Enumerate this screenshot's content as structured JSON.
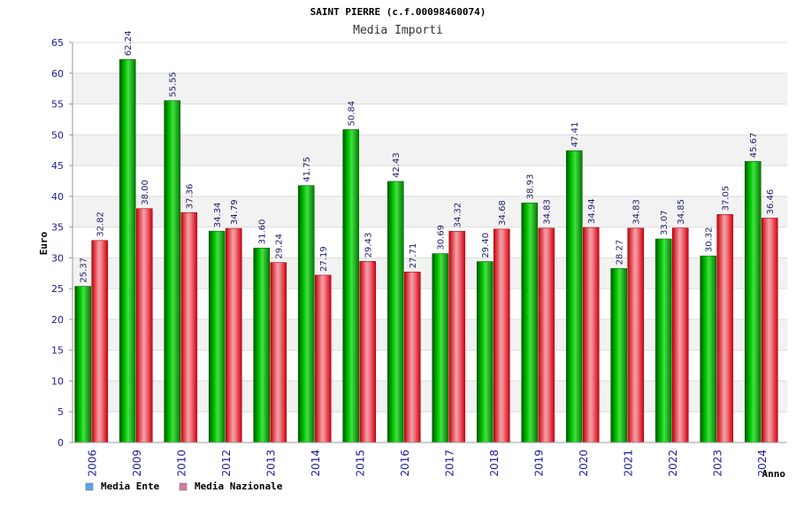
{
  "chart_data": {
    "type": "bar",
    "title": "SAINT PIERRE (c.f.00098460074)",
    "subtitle": "Media Importi",
    "xlabel": "Anno",
    "ylabel": "Euro",
    "ylim": [
      0,
      65
    ],
    "yticks": [
      0,
      5,
      10,
      15,
      20,
      25,
      30,
      35,
      40,
      45,
      50,
      55,
      60,
      65
    ],
    "grid": true,
    "legend_position": "bottom-left",
    "categories": [
      "2006",
      "2009",
      "2010",
      "2012",
      "2013",
      "2014",
      "2015",
      "2016",
      "2017",
      "2018",
      "2019",
      "2020",
      "2021",
      "2022",
      "2023",
      "2024"
    ],
    "series": [
      {
        "name": "Media Ente",
        "color": "#00b000",
        "legend_color": "#5ba3e8",
        "values": [
          25.37,
          62.24,
          55.55,
          34.34,
          31.6,
          41.75,
          50.84,
          42.43,
          30.69,
          29.4,
          38.93,
          47.41,
          28.27,
          33.07,
          30.32,
          45.67
        ],
        "labels": [
          "25.37",
          "62.24",
          "55.55",
          "34.34",
          "31.60",
          "41.75",
          "50.84",
          "42.43",
          "30.69",
          "29.40",
          "38.93",
          "47.41",
          "28.27",
          "33.07",
          "30.32",
          "45.67"
        ]
      },
      {
        "name": "Media Nazionale",
        "color": "#e8101e",
        "legend_color": "#d87aa8",
        "values": [
          32.82,
          38.0,
          37.36,
          34.79,
          29.24,
          27.19,
          29.43,
          27.71,
          34.32,
          34.68,
          34.83,
          34.94,
          34.83,
          34.85,
          37.05,
          36.46
        ],
        "labels": [
          "32.82",
          "38.00",
          "37.36",
          "34.79",
          "29.24",
          "27.19",
          "29.43",
          "27.71",
          "34.32",
          "34.68",
          "34.83",
          "34.94",
          "34.83",
          "34.85",
          "37.05",
          "36.46"
        ]
      }
    ]
  }
}
